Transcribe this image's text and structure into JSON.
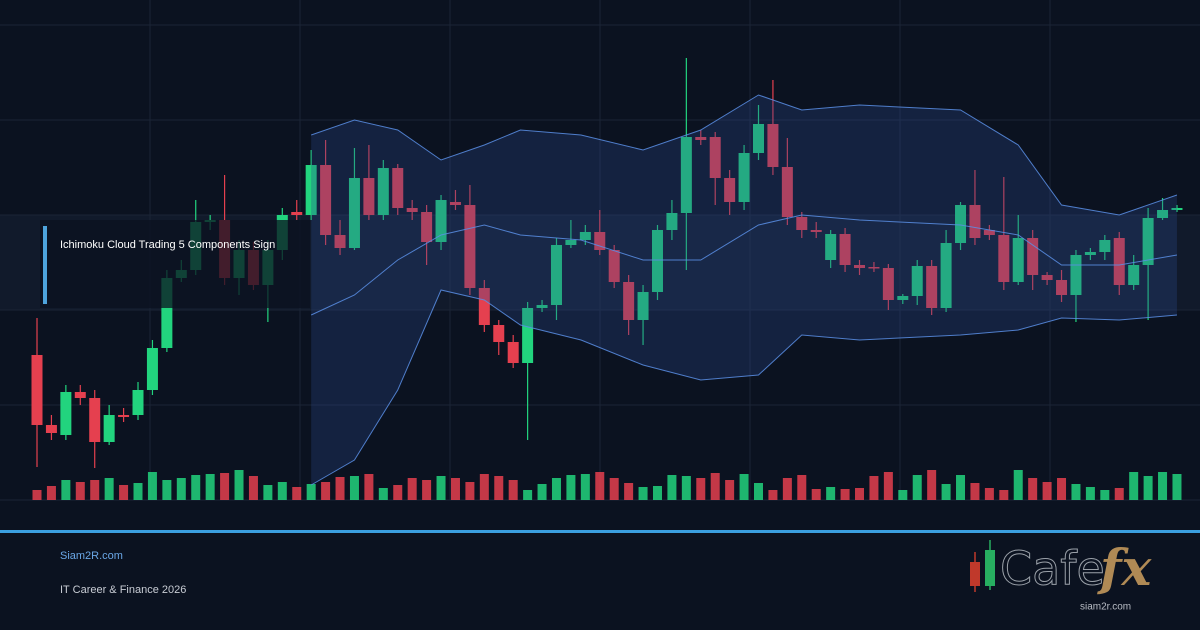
{
  "header": {
    "title": "Ichimoku Cloud Trading 5 Components Sign"
  },
  "footer": {
    "site": "Siam2R.com",
    "tagline": "IT Career & Finance 2026"
  },
  "logo": {
    "name": "Cafe",
    "accent": "fx",
    "url": "siam2r.com"
  },
  "chart_data": {
    "type": "candlestick",
    "up_color": "#22d47e",
    "down_color": "#e5404f",
    "band_color": "#5b8fe6",
    "ylim": [
      0,
      480
    ],
    "vlim": [
      0,
      30
    ],
    "open": [
      145,
      75,
      65,
      108,
      102,
      58,
      85,
      85,
      110,
      152,
      222,
      230,
      278,
      280,
      222,
      250,
      215,
      250,
      288,
      285,
      335,
      265,
      252,
      322,
      285,
      332,
      292,
      288,
      258,
      298,
      295,
      212,
      175,
      158,
      137,
      192,
      195,
      255,
      260,
      268,
      250,
      218,
      180,
      208,
      270,
      287,
      363,
      363,
      322,
      298,
      347,
      376,
      333,
      283,
      270,
      240,
      266,
      235,
      233,
      232,
      200,
      204,
      234,
      192,
      257,
      295,
      270,
      265,
      218,
      262,
      225,
      220,
      205,
      245,
      248,
      262,
      215,
      235,
      282,
      290
    ],
    "high": [
      182,
      85,
      115,
      115,
      110,
      95,
      92,
      118,
      160,
      230,
      240,
      300,
      285,
      325,
      260,
      258,
      260,
      292,
      300,
      350,
      360,
      280,
      352,
      355,
      340,
      336,
      300,
      295,
      305,
      310,
      315,
      220,
      180,
      165,
      198,
      200,
      262,
      280,
      275,
      290,
      255,
      225,
      215,
      275,
      300,
      442,
      370,
      368,
      330,
      355,
      395,
      420,
      362,
      288,
      278,
      270,
      272,
      240,
      238,
      236,
      206,
      240,
      240,
      270,
      298,
      330,
      275,
      323,
      285,
      270,
      228,
      230,
      250,
      252,
      265,
      268,
      245,
      292,
      302,
      295
    ],
    "low": [
      33,
      60,
      60,
      95,
      32,
      55,
      78,
      80,
      105,
      148,
      218,
      225,
      270,
      215,
      205,
      210,
      178,
      240,
      280,
      280,
      255,
      245,
      250,
      280,
      280,
      285,
      280,
      235,
      250,
      290,
      205,
      168,
      145,
      132,
      60,
      188,
      180,
      252,
      255,
      245,
      212,
      165,
      155,
      200,
      260,
      230,
      355,
      295,
      285,
      290,
      340,
      325,
      275,
      262,
      262,
      232,
      228,
      225,
      228,
      190,
      196,
      195,
      185,
      188,
      250,
      255,
      260,
      210,
      215,
      210,
      215,
      198,
      178,
      240,
      240,
      205,
      210,
      180,
      280,
      288
    ],
    "close": [
      75,
      67,
      108,
      102,
      58,
      85,
      83,
      110,
      152,
      222,
      230,
      278,
      280,
      222,
      250,
      215,
      250,
      285,
      285,
      335,
      265,
      252,
      322,
      285,
      332,
      292,
      288,
      258,
      300,
      295,
      212,
      175,
      158,
      137,
      192,
      195,
      255,
      260,
      268,
      250,
      218,
      180,
      208,
      270,
      287,
      363,
      360,
      322,
      298,
      347,
      376,
      333,
      283,
      270,
      268,
      266,
      235,
      232,
      232,
      200,
      204,
      234,
      192,
      257,
      295,
      262,
      265,
      218,
      262,
      225,
      220,
      205,
      245,
      248,
      260,
      215,
      235,
      282,
      290,
      292
    ],
    "volume": [
      10,
      14,
      20,
      18,
      20,
      22,
      15,
      17,
      28,
      20,
      22,
      25,
      26,
      27,
      30,
      24,
      15,
      18,
      13,
      16,
      18,
      23,
      24,
      26,
      12,
      15,
      22,
      20,
      24,
      22,
      18,
      26,
      24,
      20,
      10,
      16,
      22,
      25,
      26,
      28,
      22,
      17,
      13,
      14,
      25,
      24,
      22,
      27,
      20,
      26,
      17,
      10,
      22,
      25,
      11,
      13,
      11,
      12,
      24,
      28,
      10,
      25,
      30,
      16,
      25,
      17,
      12,
      10,
      30,
      22,
      18,
      22,
      16,
      13,
      10,
      12,
      28,
      24,
      28,
      26
    ],
    "band": {
      "x": [
        19,
        22,
        25,
        28,
        31,
        33.5,
        37.7,
        42,
        46,
        50,
        53,
        57,
        64,
        68,
        71,
        75,
        79
      ],
      "upper": [
        365,
        380,
        370,
        340,
        355,
        370,
        365,
        350,
        370,
        405,
        390,
        395,
        390,
        355,
        295,
        285,
        305
      ],
      "middle": [
        185,
        205,
        240,
        265,
        275,
        265,
        260,
        240,
        240,
        275,
        285,
        280,
        275,
        265,
        235,
        235,
        245
      ],
      "lower": [
        15,
        40,
        110,
        210,
        200,
        175,
        160,
        135,
        120,
        125,
        165,
        160,
        165,
        170,
        182,
        180,
        185
      ]
    }
  }
}
